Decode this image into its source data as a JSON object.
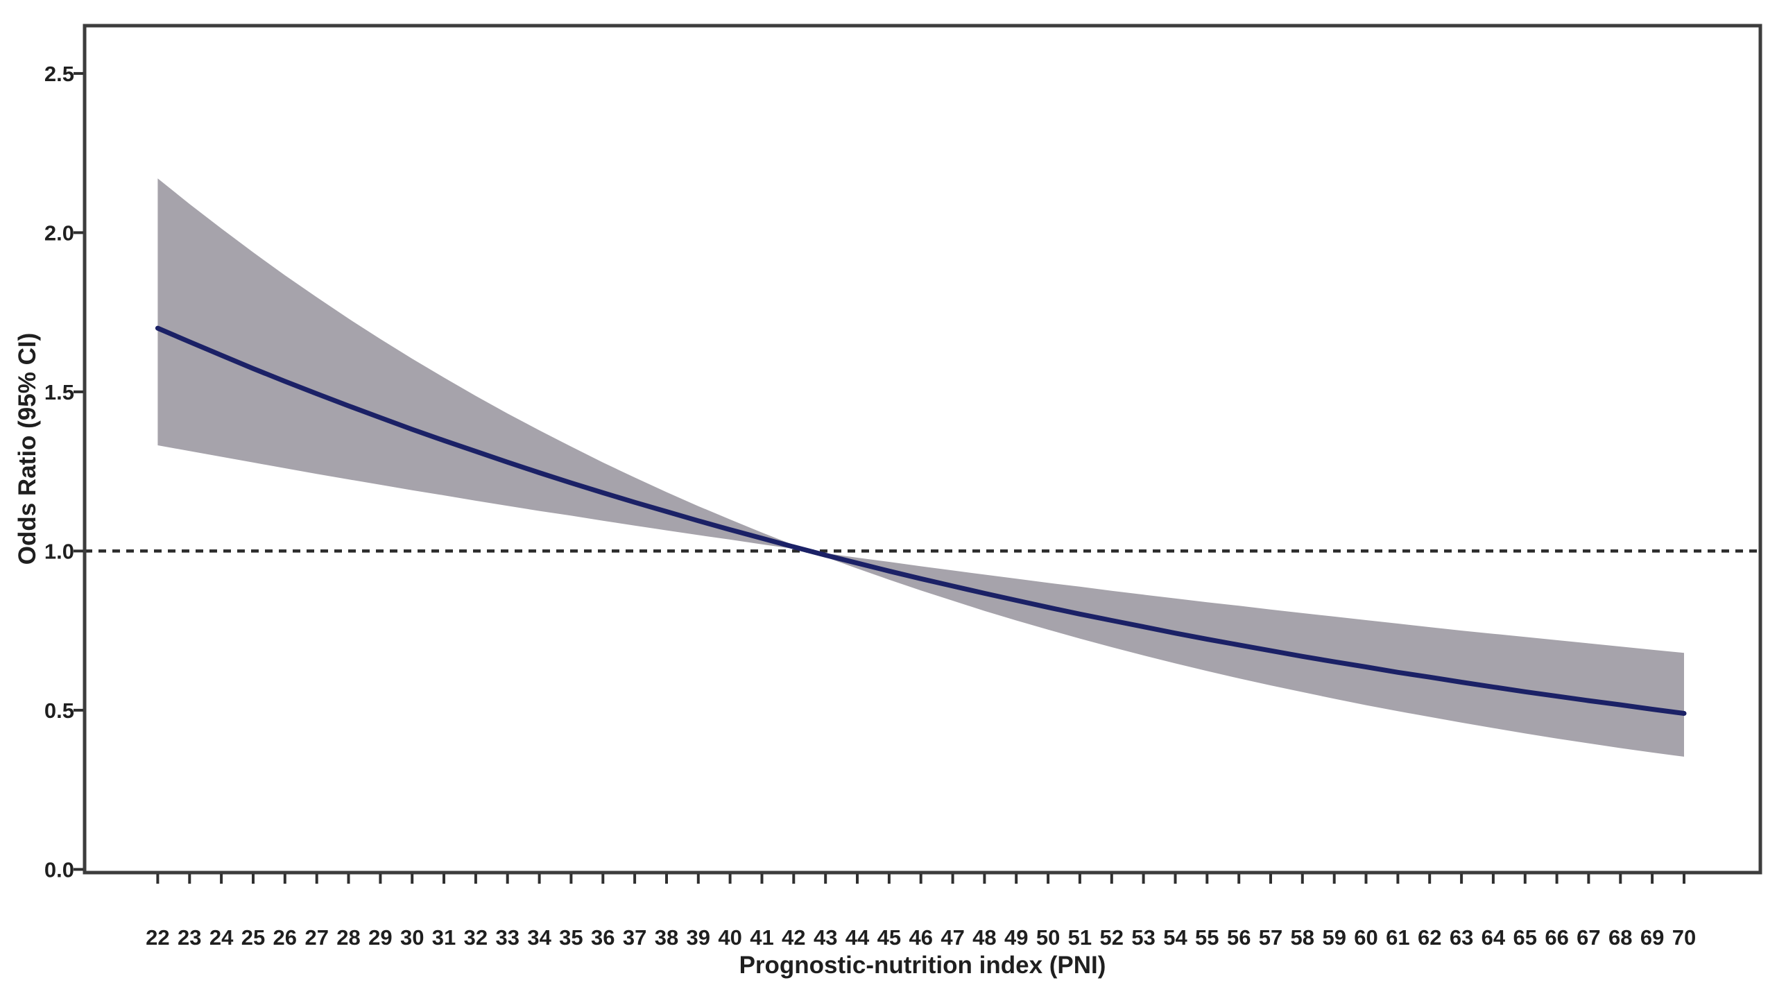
{
  "chart_data": {
    "type": "line",
    "title": "",
    "xlabel": "Prognostic-nutrition index (PNI)",
    "ylabel": "Odds Ratio (95% CI)",
    "x": [
      22,
      23,
      24,
      25,
      26,
      27,
      28,
      29,
      30,
      31,
      32,
      33,
      34,
      35,
      36,
      37,
      38,
      39,
      40,
      41,
      42,
      43,
      44,
      45,
      46,
      47,
      48,
      49,
      50,
      51,
      52,
      53,
      54,
      55,
      56,
      57,
      58,
      59,
      60,
      61,
      62,
      63,
      64,
      65,
      66,
      67,
      68,
      69,
      70
    ],
    "series": [
      {
        "name": "Odds ratio",
        "values": [
          1.7,
          1.657,
          1.615,
          1.573,
          1.533,
          1.494,
          1.456,
          1.419,
          1.382,
          1.347,
          1.313,
          1.279,
          1.246,
          1.214,
          1.183,
          1.153,
          1.124,
          1.095,
          1.067,
          1.04,
          1.013,
          0.987,
          0.962,
          0.937,
          0.913,
          0.89,
          0.867,
          0.845,
          0.823,
          0.802,
          0.782,
          0.762,
          0.742,
          0.723,
          0.705,
          0.687,
          0.669,
          0.652,
          0.636,
          0.619,
          0.604,
          0.588,
          0.573,
          0.558,
          0.544,
          0.53,
          0.517,
          0.503,
          0.49
        ]
      },
      {
        "name": "95% CI upper",
        "values": [
          2.17,
          2.09,
          2.013,
          1.938,
          1.866,
          1.797,
          1.73,
          1.666,
          1.604,
          1.545,
          1.487,
          1.432,
          1.379,
          1.328,
          1.278,
          1.231,
          1.185,
          1.141,
          1.099,
          1.058,
          1.019,
          0.993,
          0.979,
          0.966,
          0.952,
          0.939,
          0.926,
          0.913,
          0.9,
          0.888,
          0.875,
          0.863,
          0.851,
          0.839,
          0.828,
          0.816,
          0.805,
          0.794,
          0.783,
          0.772,
          0.761,
          0.75,
          0.74,
          0.73,
          0.72,
          0.71,
          0.7,
          0.69,
          0.68
        ]
      },
      {
        "name": "95% CI lower",
        "values": [
          1.332,
          1.314,
          1.296,
          1.278,
          1.26,
          1.242,
          1.225,
          1.208,
          1.191,
          1.175,
          1.158,
          1.142,
          1.126,
          1.111,
          1.095,
          1.08,
          1.065,
          1.05,
          1.036,
          1.021,
          1.007,
          0.981,
          0.945,
          0.91,
          0.876,
          0.844,
          0.812,
          0.782,
          0.753,
          0.725,
          0.698,
          0.672,
          0.647,
          0.623,
          0.6,
          0.578,
          0.557,
          0.536,
          0.516,
          0.497,
          0.479,
          0.461,
          0.444,
          0.427,
          0.411,
          0.396,
          0.381,
          0.367,
          0.354
        ]
      }
    ],
    "x_ticks": [
      22,
      23,
      24,
      25,
      26,
      27,
      28,
      29,
      30,
      31,
      32,
      33,
      34,
      35,
      36,
      37,
      38,
      39,
      40,
      41,
      42,
      43,
      44,
      45,
      46,
      47,
      48,
      49,
      50,
      51,
      52,
      53,
      54,
      55,
      56,
      57,
      58,
      59,
      60,
      61,
      62,
      63,
      64,
      65,
      66,
      67,
      68,
      69,
      70
    ],
    "y_ticks": [
      0.0,
      0.5,
      1.0,
      1.5,
      2.0,
      2.5
    ],
    "xlim": [
      19.7,
      72.4
    ],
    "ylim": [
      -0.01,
      2.65
    ],
    "reference_line_y": 1.0,
    "grid": "off",
    "legend": "none",
    "colors": {
      "line": "#1b2166",
      "band": "#a6a3ab",
      "frame": "#3d3d3d",
      "tick": "#2f2f2f",
      "text": "#1f1f1f",
      "reference": "#2b2b2b",
      "background": "#ffffff"
    }
  }
}
